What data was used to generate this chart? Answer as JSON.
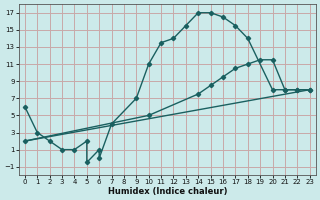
{
  "xlabel": "Humidex (Indice chaleur)",
  "bg_color": "#cceaea",
  "grid_color": "#c8a8a8",
  "line_color": "#1a6060",
  "xlim": [
    -0.5,
    23.5
  ],
  "ylim": [
    -2,
    18
  ],
  "xticks": [
    0,
    1,
    2,
    3,
    4,
    5,
    6,
    7,
    8,
    9,
    10,
    11,
    12,
    13,
    14,
    15,
    16,
    17,
    18,
    19,
    20,
    21,
    22,
    23
  ],
  "yticks": [
    -1,
    1,
    3,
    5,
    7,
    9,
    11,
    13,
    15,
    17
  ],
  "line1_x": [
    0,
    1,
    2,
    3,
    4,
    5,
    5,
    6,
    6,
    7,
    9,
    10,
    11,
    12,
    13,
    14,
    15,
    16,
    17,
    18,
    20,
    21,
    22,
    23
  ],
  "line1_y": [
    6,
    3,
    2,
    1,
    1,
    2,
    -0.5,
    1,
    0,
    4,
    7,
    11,
    13.5,
    14,
    15.5,
    17,
    17,
    16.5,
    15.5,
    14,
    8,
    8,
    8,
    8
  ],
  "line2_x": [
    0,
    10,
    14,
    15,
    16,
    17,
    18,
    19,
    20,
    21,
    22,
    23
  ],
  "line2_y": [
    2,
    5,
    7.5,
    8.5,
    9.5,
    10.5,
    11,
    11.5,
    11.5,
    8,
    8,
    8
  ],
  "line3_x": [
    0,
    23
  ],
  "line3_y": [
    2,
    8
  ]
}
